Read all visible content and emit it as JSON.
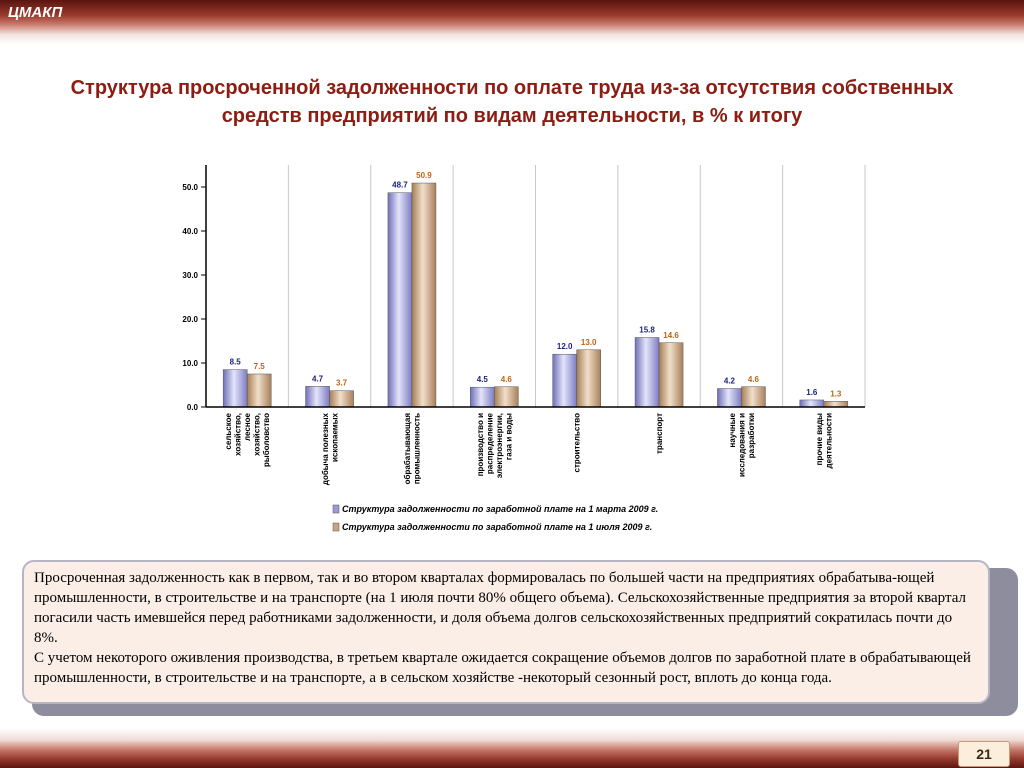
{
  "brand": "ЦМАКП",
  "page_number": "21",
  "title": "Структура просроченной задолженности по оплате труда из-за отсутствия собственных средств предприятий по видам деятельности, в % к итогу",
  "chart_data": {
    "type": "bar",
    "categories": [
      "сельское хозяйство, лесное хозяйство, рыболовство",
      "добыча полезных ископаемых",
      "обрабатывающая промышленность",
      "производство и распределение электроэнергии, газа и воды",
      "строительство",
      "транспорт",
      "научные исследования и разработки",
      "прочие виды деятельности"
    ],
    "category_lines": [
      [
        "сельское",
        "хозяйство,",
        "лесное",
        "хозяйство,",
        "рыболовство"
      ],
      [
        "добыча полезных",
        "ископаемых"
      ],
      [
        "обрабатывающая",
        "промышленность"
      ],
      [
        "производство и",
        "распределение",
        "электроэнергии,",
        "газа и воды"
      ],
      [
        "строительство"
      ],
      [
        "транспорт"
      ],
      [
        "научные",
        "исследования и",
        "разработки"
      ],
      [
        "прочие виды",
        "деятельности"
      ]
    ],
    "series": [
      {
        "name": "Структура задолженности по заработной плате на 1 марта 2009 г.",
        "values": [
          8.5,
          4.7,
          48.7,
          4.5,
          12.0,
          15.8,
          4.2,
          1.6
        ],
        "color": "#9b9bd8",
        "label_color": "#1a237e"
      },
      {
        "name": "Структура задолженности по заработной плате на 1 июля 2009 г.",
        "values": [
          7.5,
          3.7,
          50.9,
          4.6,
          13.0,
          14.6,
          4.6,
          1.3
        ],
        "color": "#c9a47e",
        "label_color": "#b8651b"
      }
    ],
    "value_labels": [
      [
        "8.5",
        "4.7",
        "48.7",
        "4.5",
        "12.0",
        "15.8",
        "4.2",
        "1.6"
      ],
      [
        "7.5",
        "3.7",
        "50.9",
        "4.6",
        "13.0",
        "14.6",
        "4.6",
        "1.3"
      ]
    ],
    "yticks": [
      0,
      10,
      20,
      30,
      40,
      50
    ],
    "ytick_labels": [
      "0.0",
      "10.0",
      "20.0",
      "30.0",
      "40.0",
      "50.0"
    ],
    "ylim": [
      0,
      55
    ],
    "grid": true,
    "legend_position": "bottom"
  },
  "note_paragraphs": [
    "Просроченная задолженность как в первом, так и во втором кварталах формировалась по большей части на предприятиях обрабатыва-ющей промышленности, в строительстве и на транспорте (на 1 июля почти  80% общего объема). Сельскохозяйственные предприятия за второй квартал погасили часть имевшейся перед работниками задолженности, и доля объема долгов сельскохозяйственных предприятий сократилась почти до 8%.",
    "С учетом некоторого оживления производства, в третьем квартале ожидается сокращение объемов долгов по заработной плате в обрабатывающей промышленности, в строительстве и на транспорте, а в сельском хозяйстве -некоторый сезонный рост, вплоть до конца года."
  ]
}
